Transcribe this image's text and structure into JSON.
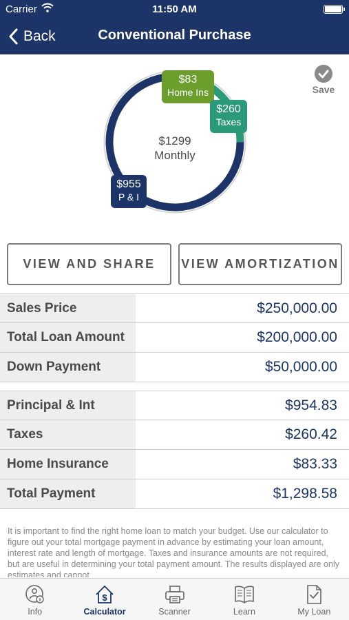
{
  "status_bar": {
    "carrier": "Carrier",
    "time": "11:50 AM"
  },
  "nav": {
    "back_label": "Back",
    "title": "Conventional Purchase"
  },
  "summary": {
    "monthly_amount": "$1299",
    "monthly_label": "Monthly",
    "segments": [
      {
        "name": "P & I",
        "amount": "$955",
        "value": 955,
        "color": "#1c3467"
      },
      {
        "name": "Taxes",
        "amount": "$260",
        "value": 260,
        "color": "#2a9a7a"
      },
      {
        "name": "Home Ins",
        "amount": "$83",
        "value": 83,
        "color": "#6b9e2c"
      }
    ]
  },
  "save_label": "Save",
  "buttons": {
    "view_share": "VIEW AND SHARE",
    "view_amortization": "VIEW AMORTIZATION"
  },
  "loan_table": [
    {
      "label": "Sales Price",
      "value": "$250,000.00"
    },
    {
      "label": "Total Loan Amount",
      "value": "$200,000.00"
    },
    {
      "label": "Down Payment",
      "value": "$50,000.00"
    }
  ],
  "payment_table": [
    {
      "label": "Principal & Int",
      "value": "$954.83"
    },
    {
      "label": "Taxes",
      "value": "$260.42"
    },
    {
      "label": "Home Insurance",
      "value": "$83.33"
    },
    {
      "label": "Total Payment",
      "value": "$1,298.58"
    }
  ],
  "disclaimer": "It is important to find the right home loan to match your budget. Use our calculator to figure out your total mortgage payment in advance by estimating your loan amount, interest rate and length of mortgage. Taxes and insurance amounts are not required, but are useful in determining your total payment amount.  The results displayed are only estimates and cannot",
  "tabs": [
    {
      "label": "Info",
      "icon": "info-icon",
      "active": false
    },
    {
      "label": "Calculator",
      "icon": "calculator-icon",
      "active": true
    },
    {
      "label": "Scanner",
      "icon": "scanner-icon",
      "active": false
    },
    {
      "label": "Learn",
      "icon": "book-icon",
      "active": false
    },
    {
      "label": "My Loan",
      "icon": "document-check-icon",
      "active": false
    }
  ],
  "colors": {
    "brand": "#1c3467",
    "taxes": "#2a9a7a",
    "insurance": "#6b9e2c",
    "accent_text": "#1c3467"
  }
}
